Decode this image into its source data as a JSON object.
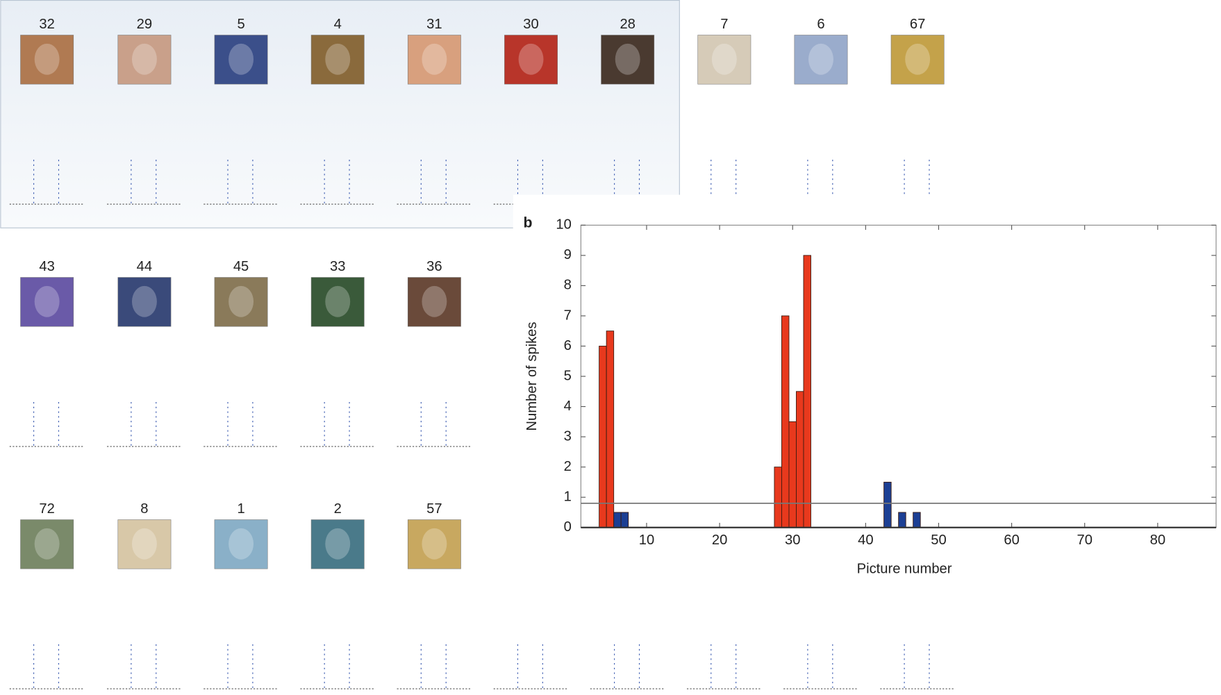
{
  "panel_a": {
    "rows": [
      [
        "32",
        "29",
        "5",
        "4",
        "31",
        "30",
        "28",
        "7",
        "6",
        "67"
      ],
      [
        "43",
        "44",
        "45",
        "33",
        "36"
      ],
      [
        "72",
        "8",
        "1",
        "2",
        "57"
      ]
    ]
  },
  "chart_data": {
    "type": "bar",
    "panel_label": "b",
    "x_label": "Picture number",
    "y_label": "Number of spikes",
    "x": [
      4,
      5,
      6,
      7,
      28,
      29,
      30,
      31,
      32,
      43,
      45,
      47
    ],
    "values": [
      6,
      6.5,
      0.5,
      0.5,
      2,
      7,
      3.5,
      4.5,
      9,
      1.5,
      0.5,
      0.5
    ],
    "colors": [
      "#e8391d",
      "#e8391d",
      "#1c3f94",
      "#1c3f94",
      "#e8391d",
      "#e8391d",
      "#e8391d",
      "#e8391d",
      "#e8391d",
      "#1c3f94",
      "#1c3f94",
      "#1c3f94"
    ],
    "threshold": 0.8,
    "xlim": [
      1,
      88
    ],
    "ylim": [
      0,
      10
    ],
    "xticks": [
      10,
      20,
      30,
      40,
      50,
      60,
      70,
      80
    ],
    "yticks": [
      0,
      1,
      2,
      3,
      4,
      5,
      6,
      7,
      8,
      9,
      10
    ]
  }
}
